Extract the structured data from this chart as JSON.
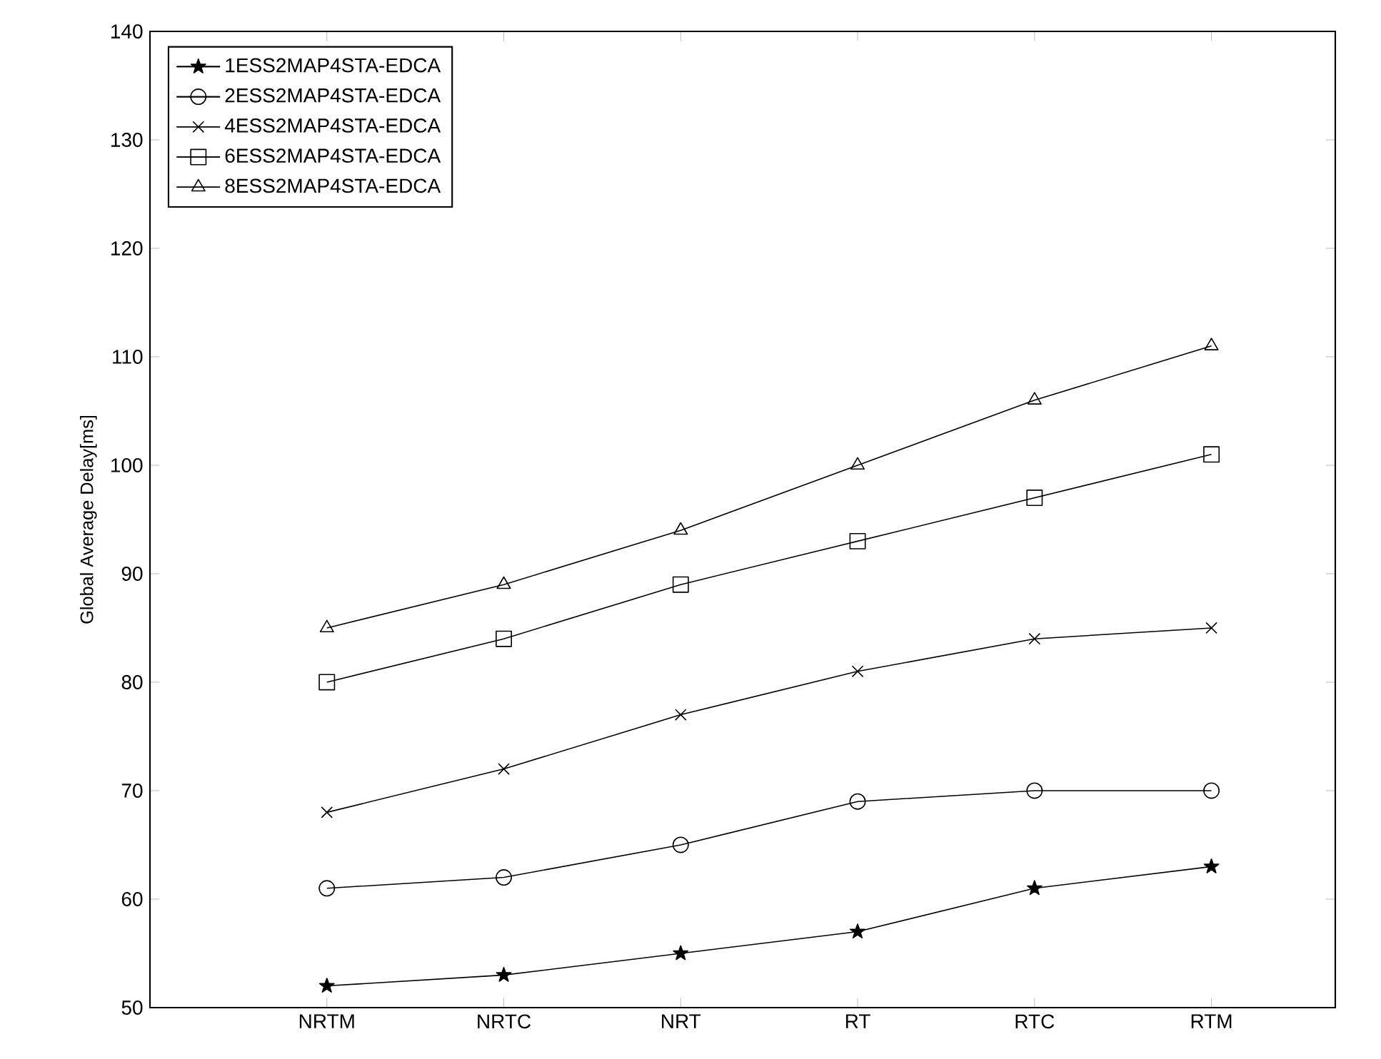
{
  "chart_data": {
    "type": "line",
    "ylabel": "Global Average Delay[ms]",
    "categories": [
      "NRTM",
      "NRTC",
      "NRT",
      "RT",
      "RTC",
      "RTM"
    ],
    "series": [
      {
        "name": "1ESS2MAP4STA-EDCA",
        "color": "#000000",
        "marker": "star",
        "values": [
          52,
          53,
          55,
          57,
          61,
          63
        ]
      },
      {
        "name": "2ESS2MAP4STA-EDCA",
        "color": "#000000",
        "marker": "circle",
        "values": [
          61,
          62,
          65,
          69,
          70,
          70
        ]
      },
      {
        "name": "4ESS2MAP4STA-EDCA",
        "color": "#000000",
        "marker": "cross",
        "values": [
          68,
          72,
          77,
          81,
          84,
          85
        ]
      },
      {
        "name": "6ESS2MAP4STA-EDCA",
        "color": "#000000",
        "marker": "square",
        "values": [
          80,
          84,
          89,
          93,
          97,
          101
        ]
      },
      {
        "name": "8ESS2MAP4STA-EDCA",
        "color": "#000000",
        "marker": "triangle",
        "values": [
          85,
          89,
          94,
          100,
          106,
          111
        ]
      }
    ],
    "ylim": [
      50,
      140
    ],
    "yticks": [
      50,
      60,
      70,
      80,
      90,
      100,
      110,
      120,
      130,
      140
    ],
    "grid": false,
    "legend": "top left",
    "line_style": "solid"
  }
}
